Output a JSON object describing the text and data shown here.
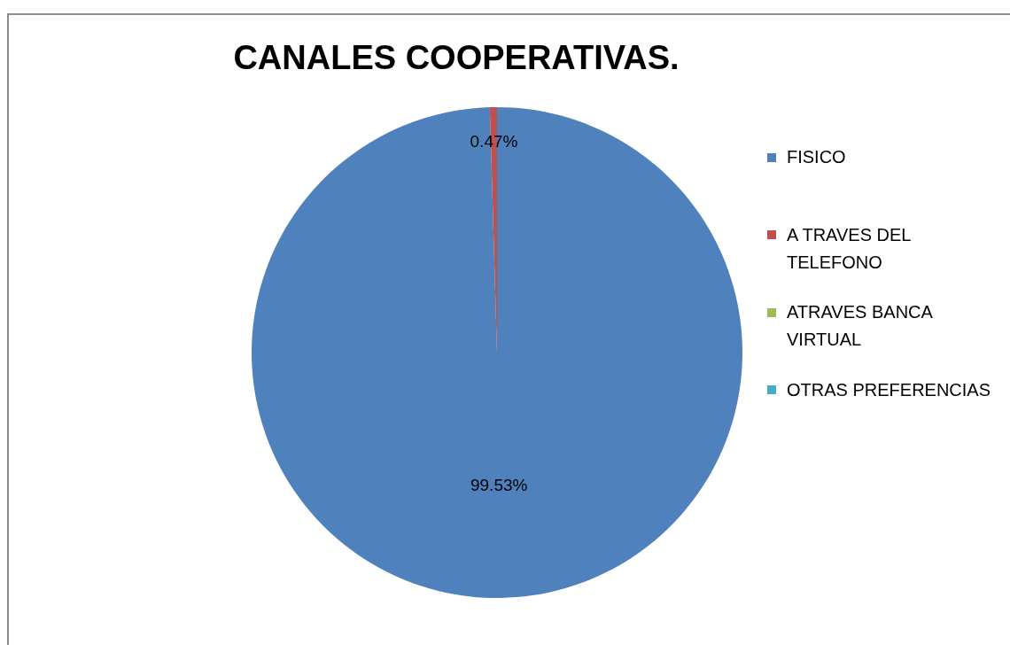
{
  "chart_data": {
    "type": "pie",
    "title": "CANALES COOPERATIVAS.",
    "categories": [
      "FISICO",
      "A TRAVES DEL TELEFONO",
      "ATRAVES BANCA VIRTUAL",
      "OTRAS PREFERENCIAS"
    ],
    "values": [
      99.53,
      0.47,
      0,
      0
    ],
    "colors": [
      "#4f81bd",
      "#c0504d",
      "#9bbb59",
      "#4bacc6"
    ],
    "value_labels": [
      "99.53%",
      "0.47%",
      null,
      null
    ],
    "legend": "right"
  }
}
